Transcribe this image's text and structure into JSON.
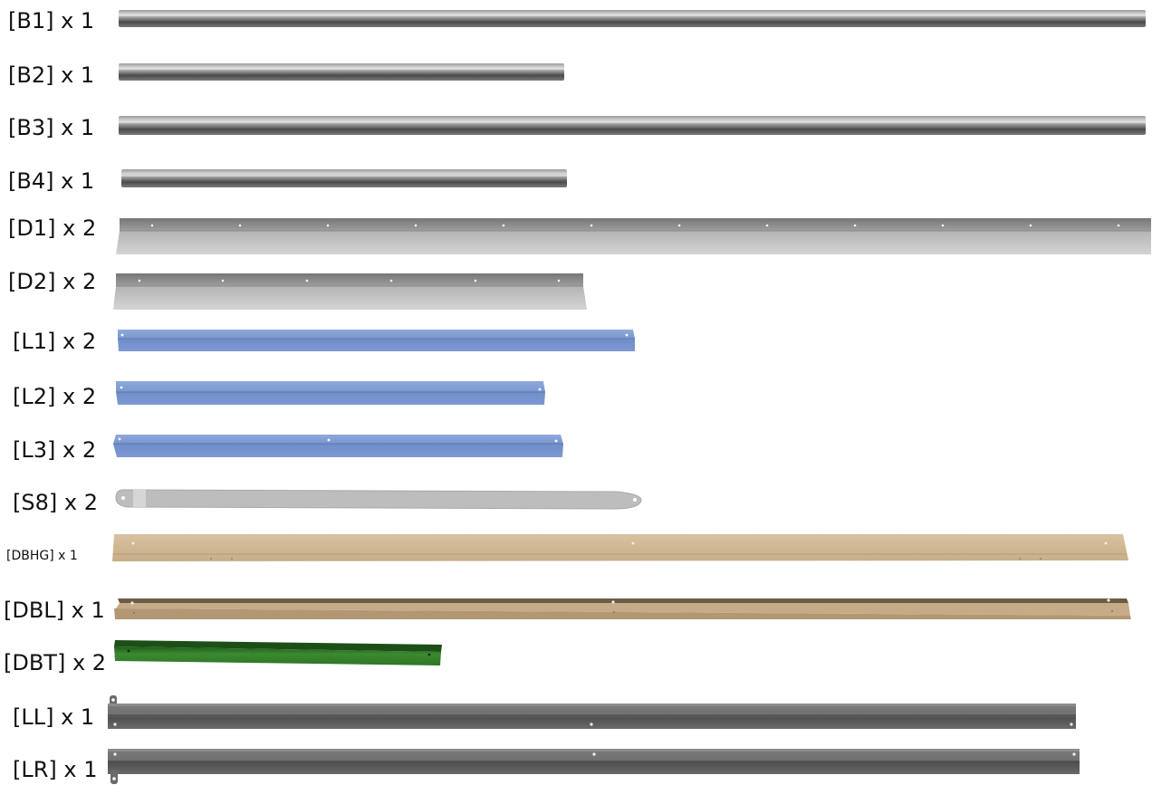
{
  "parts": [
    {
      "id": "b1",
      "label": "[B1] x 1"
    },
    {
      "id": "b2",
      "label": "[B2] x 1"
    },
    {
      "id": "b3",
      "label": "[B3] x 1"
    },
    {
      "id": "b4",
      "label": "[B4] x 1"
    },
    {
      "id": "d1",
      "label": "[D1] x 2"
    },
    {
      "id": "d2",
      "label": "[D2] x 2"
    },
    {
      "id": "l1",
      "label": "[L1] x 2"
    },
    {
      "id": "l2",
      "label": "[L2] x 2"
    },
    {
      "id": "l3",
      "label": "[L3] x 2"
    },
    {
      "id": "s8",
      "label": "[S8] x 2"
    },
    {
      "id": "dbhg",
      "label": "[DBHG] x 1"
    },
    {
      "id": "dbl",
      "label": "[DBL] x 1"
    },
    {
      "id": "dbt",
      "label": "[DBT] x 2"
    },
    {
      "id": "ll",
      "label": "[LL] x 1"
    },
    {
      "id": "lr",
      "label": "[LR] x 1"
    }
  ]
}
